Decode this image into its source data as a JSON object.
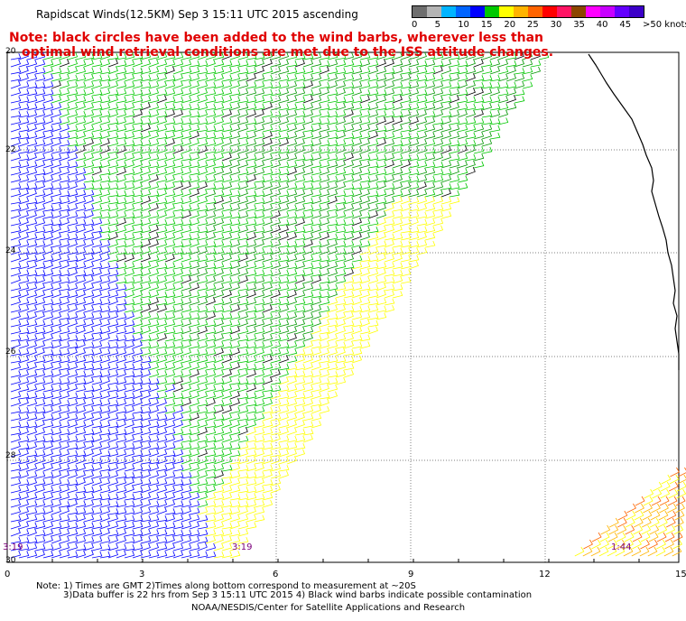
{
  "title": "Rapidscat Winds(12.5KM) Sep  3 15:11 UTC 2015 ascending",
  "note_line1": "Note: black circles have been added to the wind barbs, wherever less than",
  "note_line2": "optimal wind retrieval conditions are met due to the ISS attitude changes.",
  "legend": {
    "colors": [
      "#6e6e6e",
      "#b4b4b4",
      "#00b4ff",
      "#0064ff",
      "#0000ff",
      "#00c800",
      "#ffff00",
      "#ffb400",
      "#ff6400",
      "#ff0000",
      "#ff1464",
      "#8c4600",
      "#ff00ff",
      "#c800ff",
      "#6400ff",
      "#3c00c8"
    ],
    "labels": [
      "0",
      "5",
      "10",
      "15",
      "20",
      "25",
      "30",
      "35",
      "40",
      "45",
      ">50 knots"
    ]
  },
  "lat_labels": [
    "20",
    "22",
    "24",
    "26",
    "28",
    "30"
  ],
  "lon_labels": [
    "0",
    "3",
    "6",
    "9",
    "12",
    "15"
  ],
  "time_labels": [
    "3:19",
    "3:19",
    "1:44"
  ],
  "footnote_line1": "Note: 1) Times are GMT 2)Times along bottom correspond to measurement at ~20S",
  "footnote_line2": "3)Data buffer is 22 hrs from Sep  3 15:11 UTC 2015 4) Black wind barbs indicate possible contamination",
  "footnote_line3": "NOAA/NESDIS/Center for Satellite Applications and Research"
}
